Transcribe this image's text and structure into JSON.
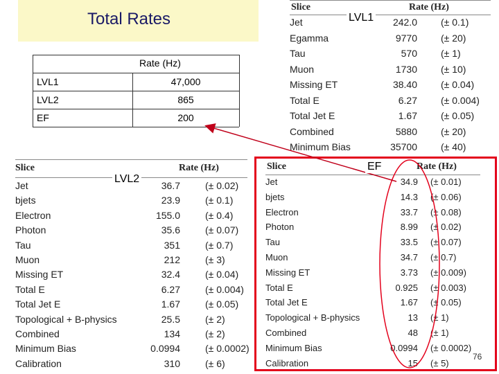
{
  "title": "Total Rates",
  "summary": {
    "header": "Rate (Hz)",
    "rows": [
      {
        "label": "LVL1",
        "value": "47,000"
      },
      {
        "label": "LVL2",
        "value": "865"
      },
      {
        "label": "EF",
        "value": "200"
      }
    ]
  },
  "callouts": {
    "lvl1": "LVL1",
    "lvl2": "LVL2",
    "ef": "EF"
  },
  "lvl1_table": {
    "headers": [
      "Slice",
      "Rate (Hz)"
    ],
    "rows": [
      [
        "Jet",
        "242.0",
        "(± 0.1)"
      ],
      [
        "Egamma",
        "9770",
        "(± 20)"
      ],
      [
        "Tau",
        "570",
        "(± 1)"
      ],
      [
        "Muon",
        "1730",
        "(± 10)"
      ],
      [
        "Missing ET",
        "38.40",
        "(± 0.04)"
      ],
      [
        "Total E",
        "6.27",
        "(± 0.004)"
      ],
      [
        "Total Jet E",
        "1.67",
        "(± 0.05)"
      ],
      [
        "Combined",
        "5880",
        "(± 20)"
      ],
      [
        "Minimum Bias",
        "35700",
        "(± 40)"
      ]
    ]
  },
  "lvl2_table": {
    "headers": [
      "Slice",
      "Rate (Hz)"
    ],
    "rows": [
      [
        "Jet",
        "36.7",
        "(± 0.02)"
      ],
      [
        "bjets",
        "23.9",
        "(± 0.1)"
      ],
      [
        "Electron",
        "155.0",
        "(± 0.4)"
      ],
      [
        "Photon",
        "35.6",
        "(± 0.07)"
      ],
      [
        "Tau",
        "351",
        "(± 0.7)"
      ],
      [
        "Muon",
        "212",
        "(± 3)"
      ],
      [
        "Missing ET",
        "32.4",
        "(± 0.04)"
      ],
      [
        "Total E",
        "6.27",
        "(± 0.004)"
      ],
      [
        "Total Jet E",
        "1.67",
        "(± 0.05)"
      ],
      [
        "Topological + B-physics",
        "25.5",
        "(± 2)"
      ],
      [
        "Combined",
        "134",
        "(± 2)"
      ],
      [
        "Minimum Bias",
        "0.0994",
        "(± 0.0002)"
      ],
      [
        "Calibration",
        "310",
        "(± 6)"
      ]
    ]
  },
  "ef_table": {
    "headers": [
      "Slice",
      "Rate (Hz)"
    ],
    "rows": [
      [
        "Jet",
        "34.9",
        "(± 0.01)"
      ],
      [
        "bjets",
        "14.3",
        "(± 0.06)"
      ],
      [
        "Electron",
        "33.7",
        "(± 0.08)"
      ],
      [
        "Photon",
        "8.99",
        "(± 0.02)"
      ],
      [
        "Tau",
        "33.5",
        "(± 0.07)"
      ],
      [
        "Muon",
        "34.7",
        "(± 0.7)"
      ],
      [
        "Missing ET",
        "3.73",
        "(± 0.009)"
      ],
      [
        "Total E",
        "0.925",
        "(± 0.003)"
      ],
      [
        "Total Jet E",
        "1.67",
        "(± 0.05)"
      ],
      [
        "Topological + B-physics",
        "13",
        "(± 1)"
      ],
      [
        "Combined",
        "48",
        "(± 1)"
      ],
      [
        "Minimum Bias",
        "0.0994",
        "(± 0.0002)"
      ],
      [
        "Calibration",
        "15",
        "(± 5)"
      ]
    ]
  },
  "page_number": "76",
  "colors": {
    "banner": "#fbf8c8",
    "title": "#1a1a66",
    "highlight": "#e3001b"
  }
}
